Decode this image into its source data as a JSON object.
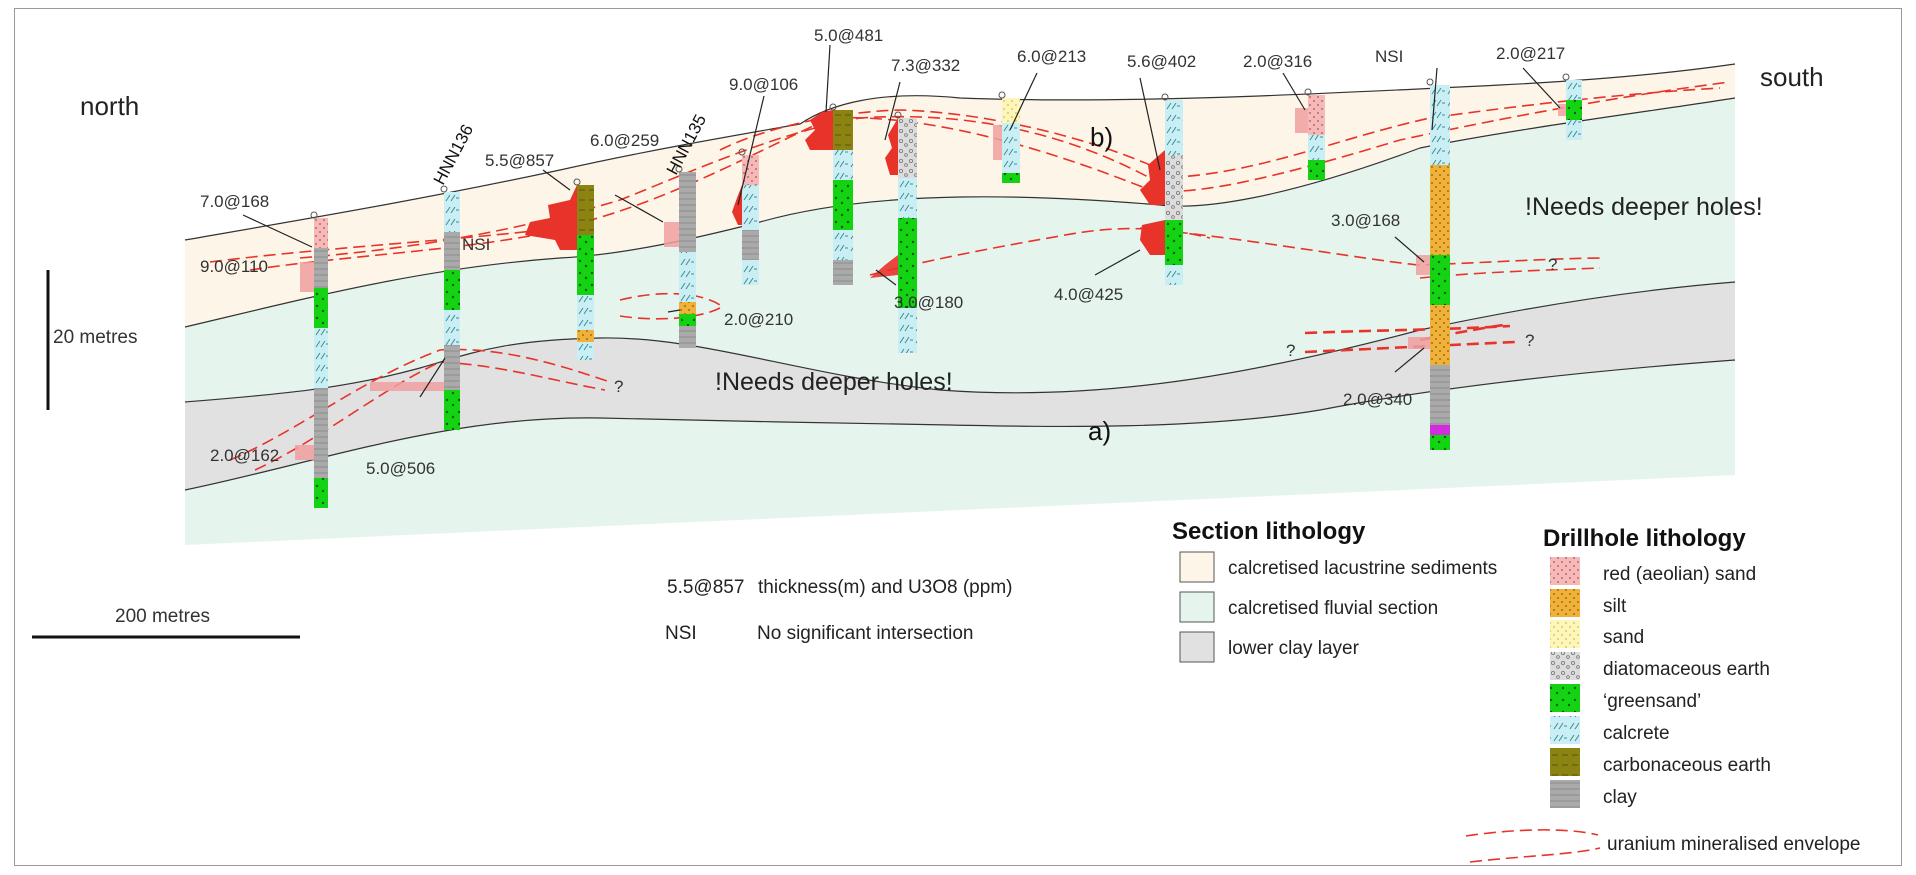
{
  "colors": {
    "lacustrine": "#fdf5e8",
    "fluvial": "#e5f5ee",
    "clay_layer": "#e1e1e1",
    "mineral_envelope": "#e8332a",
    "greensand": "#13d313",
    "calcrete": "#c9eef3",
    "clay": "#a9a9a9",
    "carbonaceous": "#8b8413",
    "silt": "#efb13a",
    "sand": "#fdf6b8",
    "red_sand": "#f4b9b9",
    "diatomaceous": "#d9d9d9"
  },
  "labels": {
    "north": "north",
    "south": "south",
    "section_b": "b)",
    "section_a": "a)",
    "needs_deeper_upper": "!Needs deeper holes!",
    "needs_deeper_lower": "!Needs deeper holes!",
    "question": "?",
    "scale_vertical": "20 metres",
    "scale_horizontal": "200 metres",
    "hole_hnn136": "HNN136",
    "hole_hnn135": "HNN135",
    "nsi": "NSI"
  },
  "intercepts": [
    "7.0@168",
    "9.0@110",
    "2.0@162",
    "5.0@506",
    "5.5@857",
    "6.0@259",
    "2.0@210",
    "9.0@106",
    "5.0@481",
    "7.3@332",
    "3.0@180",
    "6.0@213",
    "5.6@402",
    "4.0@425",
    "2.0@316",
    "3.0@168",
    "2.0@340",
    "2.0@217"
  ],
  "key": {
    "example": "5.5@857",
    "example_desc": "thickness(m) and U3O8 (ppm)",
    "nsi": "NSI",
    "nsi_desc": "No significant intersection"
  },
  "section_legend": {
    "title": "Section lithology",
    "items": [
      "calcretised lacustrine sediments",
      "calcretised fluvial section",
      "lower clay layer"
    ]
  },
  "drillhole_legend": {
    "title": "Drillhole lithology",
    "items": [
      "red (aeolian) sand",
      "silt",
      "sand",
      "diatomaceous earth",
      "‘greensand’",
      "calcrete",
      "carbonaceous earth",
      "clay"
    ],
    "envelope": "uranium mineralised envelope"
  }
}
